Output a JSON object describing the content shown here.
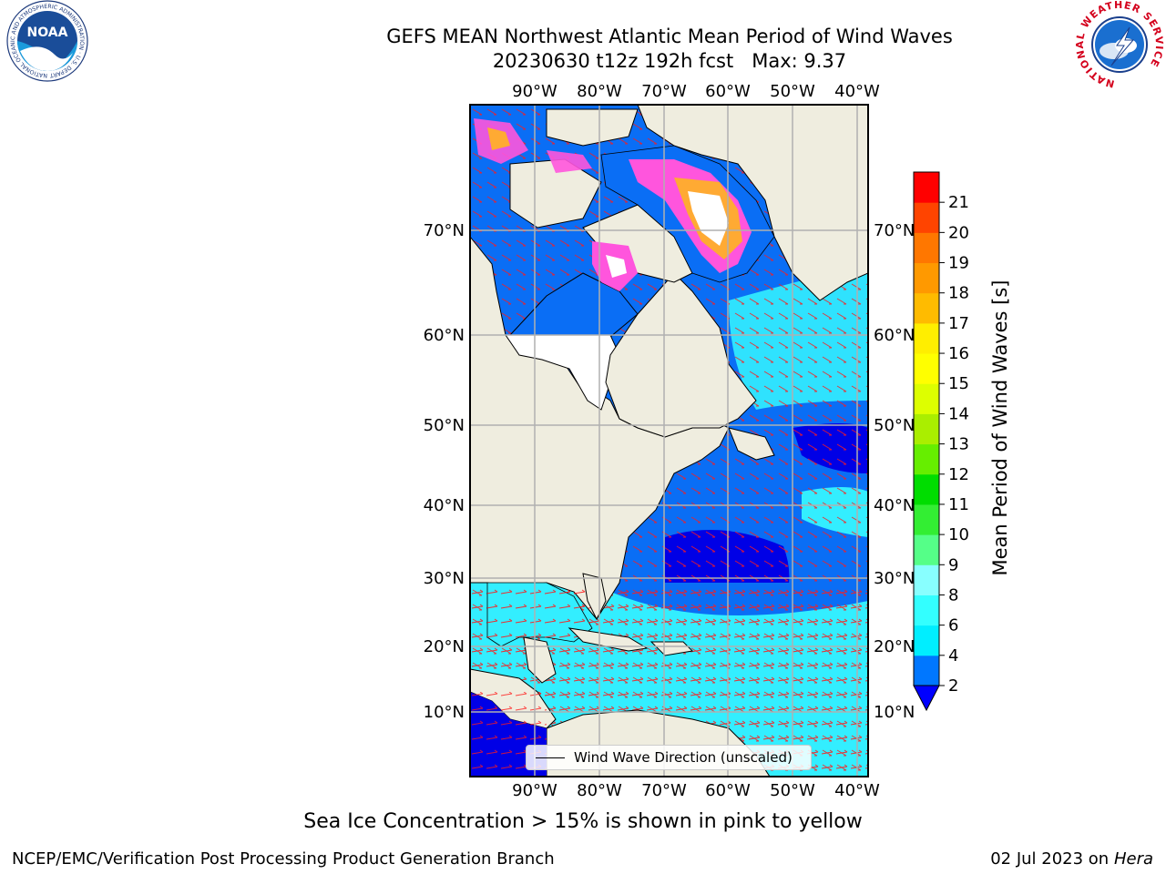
{
  "header": {
    "title": "GEFS MEAN Northwest Atlantic Mean Period of Wind Waves",
    "subtitle": "20230630 t12z 192h fcst   Max: 9.37"
  },
  "logos": {
    "noaa_text": "NOAA",
    "noaa_ring": "NATIONAL OCEANIC AND ATMOSPHERIC ADMINISTRATION · U.S. DEPARTMENT OF COMMERCE",
    "nws_ring": "NATIONAL WEATHER SERVICE"
  },
  "map": {
    "lon_labels": [
      "90°W",
      "80°W",
      "70°W",
      "60°W",
      "50°W",
      "40°W"
    ],
    "lat_labels": [
      "70°N",
      "60°N",
      "50°N",
      "40°N",
      "30°N",
      "20°N",
      "10°N"
    ],
    "legend_label": "Wind Wave Direction (unscaled)",
    "colors": {
      "land": "#efeddf",
      "grid": "#b0b0b0",
      "arrow": "#ff0000",
      "ice_pink": "#ff55dd",
      "ice_orange": "#ffaa33"
    }
  },
  "colorbar": {
    "title": "Mean Period of Wind Waves [s]",
    "ticks": [
      "2",
      "4",
      "6",
      "8",
      "9",
      "10",
      "11",
      "12",
      "13",
      "14",
      "15",
      "16",
      "17",
      "18",
      "19",
      "20",
      "21"
    ],
    "under_color": "#0000ff",
    "colors": [
      "#0077ff",
      "#00eeff",
      "#33ffff",
      "#88ffff",
      "#55ff88",
      "#33ee33",
      "#00dd00",
      "#66ee00",
      "#aaee00",
      "#ddff00",
      "#ffff00",
      "#ffee00",
      "#ffbb00",
      "#ff9900",
      "#ff7700",
      "#ff4400",
      "#ff0000"
    ]
  },
  "caption": "Sea Ice Concentration > 15% is shown in pink to yellow",
  "footer": {
    "left": "NCEP/EMC/Verification Post Processing Product Generation Branch",
    "date": "02 Jul 2023 on ",
    "host": "Hera"
  }
}
